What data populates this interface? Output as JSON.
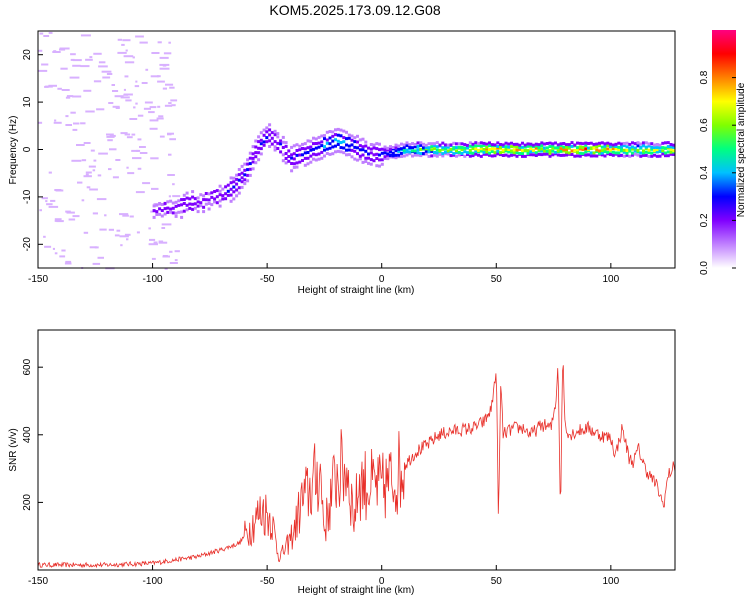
{
  "title": "KOM5.2025.173.09.12.G08",
  "chart_data": [
    {
      "type": "heatmap",
      "xlabel": "Height of straight line (km)",
      "ylabel": "Frequency (Hz)",
      "xlim": [
        -150,
        128
      ],
      "ylim": [
        -25,
        25
      ],
      "xticks": [
        -150,
        -100,
        -50,
        0,
        50,
        100
      ],
      "yticks": [
        -20,
        -10,
        0,
        10,
        20
      ],
      "colorbar": {
        "label": "Normalized spectral amplitude",
        "range": [
          0,
          1
        ],
        "ticks": [
          "0.0",
          "0.2",
          "0.4",
          "0.6",
          "0.8"
        ],
        "colors": [
          "#ffffff",
          "#c080ff",
          "#8000ff",
          "#0000ff",
          "#00c0ff",
          "#00ff80",
          "#80ff00",
          "#ffff00",
          "#ff8000",
          "#ff0000",
          "#ff0080"
        ]
      },
      "ridge": {
        "x": [
          -100,
          -90,
          -80,
          -72,
          -65,
          -60,
          -55,
          -50,
          -45,
          -40,
          -35,
          -30,
          -25,
          -20,
          -15,
          -10,
          -5,
          0,
          10,
          20,
          30,
          40,
          50,
          60,
          70,
          80,
          90,
          100,
          110,
          120,
          128
        ],
        "y": [
          -13,
          -12,
          -11,
          -10,
          -8,
          -5,
          0,
          3,
          1,
          -2,
          -1,
          0,
          1,
          2,
          1,
          0,
          -1,
          -1,
          0,
          0,
          0,
          0,
          0,
          0,
          0,
          0,
          0,
          0,
          0,
          0,
          0
        ],
        "amplitude": [
          0.2,
          0.25,
          0.25,
          0.25,
          0.3,
          0.35,
          0.3,
          0.3,
          0.25,
          0.3,
          0.3,
          0.35,
          0.4,
          0.45,
          0.4,
          0.35,
          0.3,
          0.3,
          0.55,
          0.65,
          0.7,
          0.75,
          0.85,
          0.8,
          0.85,
          0.9,
          0.85,
          0.8,
          0.65,
          0.75,
          0.8
        ]
      }
    },
    {
      "type": "line",
      "xlabel": "Height of straight line (km)",
      "ylabel": "SNR (v/v)",
      "xlim": [
        -150,
        128
      ],
      "ylim": [
        0,
        710
      ],
      "xticks": [
        -150,
        -100,
        -50,
        0,
        50,
        100
      ],
      "yticks": [
        200,
        400,
        600
      ],
      "color": "#e8302a",
      "series": [
        {
          "x": [
            -150,
            -120,
            -100,
            -90,
            -80,
            -70,
            -62,
            -58,
            -52,
            -48,
            -45,
            -42,
            -38,
            -35,
            -30,
            -27,
            -25,
            -20,
            -15,
            -12,
            -10,
            -5,
            0,
            5,
            10,
            15,
            20,
            25,
            30,
            40,
            45,
            48,
            50,
            51,
            52,
            53,
            55,
            58,
            62,
            65,
            70,
            74,
            76,
            77,
            78,
            79,
            80,
            82,
            85,
            90,
            95,
            100,
            102,
            105,
            108,
            110,
            112,
            115,
            120,
            123,
            125,
            128
          ],
          "y": [
            15,
            15,
            20,
            30,
            40,
            60,
            80,
            120,
            180,
            150,
            40,
            60,
            120,
            200,
            250,
            300,
            120,
            280,
            300,
            150,
            260,
            250,
            240,
            270,
            310,
            350,
            370,
            400,
            410,
            420,
            440,
            480,
            600,
            140,
            560,
            400,
            410,
            420,
            420,
            400,
            430,
            420,
            500,
            620,
            150,
            650,
            430,
            400,
            410,
            420,
            400,
            390,
            340,
            420,
            330,
            320,
            360,
            300,
            250,
            190,
            280,
            310
          ]
        }
      ]
    }
  ]
}
